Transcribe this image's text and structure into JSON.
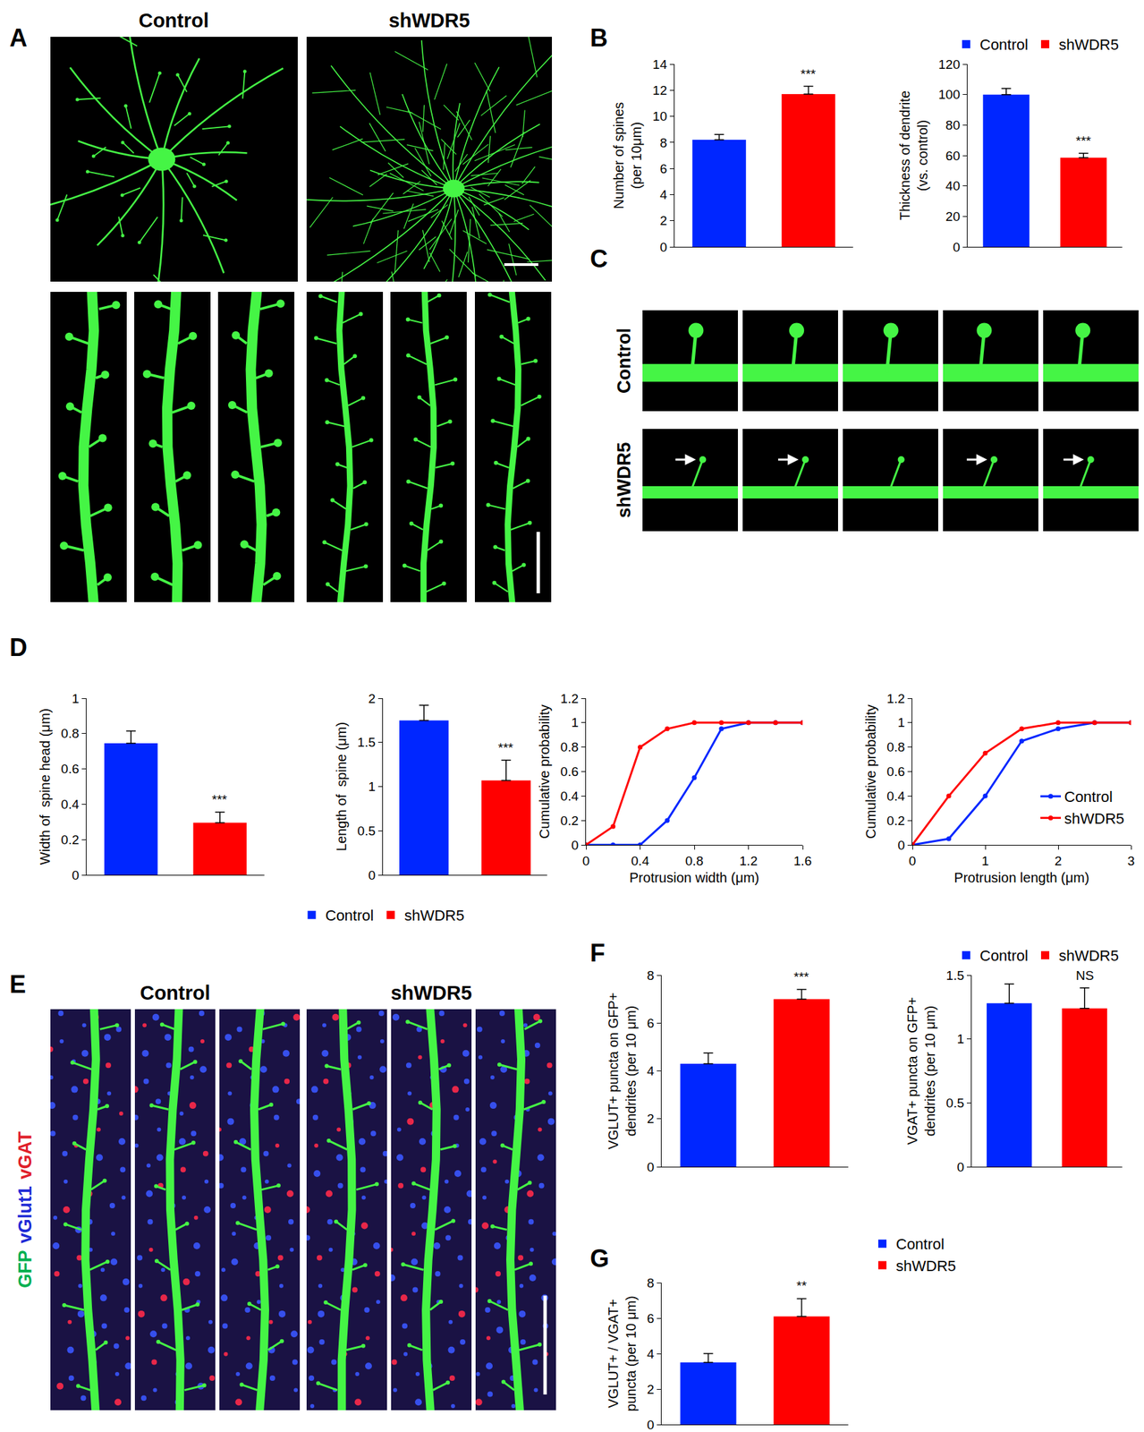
{
  "figure": {
    "letters": [
      "A",
      "B",
      "C",
      "D",
      "E",
      "F",
      "G"
    ],
    "image_panels": [
      {
        "letter": "A",
        "labels": [
          "Control",
          "shWDR5"
        ]
      },
      {
        "letter": "C",
        "labels": [
          "Control",
          "shWDR5"
        ]
      },
      {
        "letter": "E",
        "labels": [
          "Control",
          "shWDR5"
        ],
        "stains": [
          {
            "text": "GFP",
            "color": "#00b050"
          },
          {
            "text": "vGlut1",
            "color": "#1f2bd6"
          },
          {
            "text": "vGAT",
            "color": "#e0202a"
          }
        ]
      }
    ]
  },
  "chart_data": [
    {
      "type": "bar",
      "y_title": [
        "Number of spines",
        "(per 10μm)"
      ],
      "categories": [
        "Control",
        "shWDR5"
      ],
      "values": [
        8.2,
        11.7
      ],
      "errors": [
        0.4,
        0.6
      ],
      "colors": [
        "#0026ff",
        "#ff0000"
      ],
      "ylim": [
        0,
        14
      ],
      "yticks": [
        0,
        2,
        4,
        6,
        8,
        10,
        12,
        14
      ],
      "tick_labels": "y",
      "annotations": [
        {
          "category": "shWDR5",
          "text": "***"
        }
      ]
    },
    {
      "type": "bar",
      "y_title": [
        "Thickness of dendrite",
        "(vs. control)"
      ],
      "categories": [
        "Control",
        "shWDR5"
      ],
      "values": [
        100,
        58.5
      ],
      "errors": [
        4,
        3
      ],
      "colors": [
        "#0026ff",
        "#ff0000"
      ],
      "ylim": [
        0,
        120
      ],
      "yticks": [
        0,
        20,
        40,
        60,
        80,
        100,
        120
      ],
      "tick_labels": "y",
      "legend": "top right",
      "annotations": [
        {
          "category": "shWDR5",
          "text": "***"
        }
      ]
    },
    {
      "type": "bar",
      "y_title": [
        "Width of  spine head (μm)"
      ],
      "categories": [
        "Control",
        "shWDR5"
      ],
      "values": [
        0.745,
        0.295
      ],
      "errors": [
        0.07,
        0.06
      ],
      "colors": [
        "#0026ff",
        "#ff0000"
      ],
      "ylim": [
        0,
        1
      ],
      "yticks": [
        0,
        0.2,
        0.4,
        0.6,
        0.8,
        1
      ],
      "tick_labels": "y",
      "annotations": [
        {
          "category": "shWDR5",
          "text": "***"
        }
      ]
    },
    {
      "type": "bar",
      "y_title": [
        "Length of  spine (μm)"
      ],
      "categories": [
        "Control",
        "shWDR5"
      ],
      "values": [
        1.75,
        1.07
      ],
      "errors": [
        0.17,
        0.23
      ],
      "colors": [
        "#0026ff",
        "#ff0000"
      ],
      "ylim": [
        0,
        2
      ],
      "yticks": [
        0,
        0.5,
        1,
        1.5,
        2
      ],
      "tick_labels": "y",
      "legend": "bottom left",
      "annotations": [
        {
          "category": "shWDR5",
          "text": "***"
        }
      ]
    },
    {
      "type": "line",
      "x_title": "Protrusion width (μm)",
      "y_title": [
        "Cumulative probability"
      ],
      "x": [
        0,
        0.2,
        0.4,
        0.6,
        0.8,
        1.0,
        1.2,
        1.4,
        1.6
      ],
      "series": [
        {
          "name": "Control",
          "color": "#0026ff",
          "values": [
            0,
            0,
            0,
            0.2,
            0.55,
            0.95,
            1,
            1,
            1
          ]
        },
        {
          "name": "shWDR5",
          "color": "#ff0000",
          "values": [
            0,
            0.15,
            0.8,
            0.95,
            1,
            1,
            1,
            1,
            1
          ]
        }
      ],
      "marker": "circle",
      "xlim": [
        0,
        1.6
      ],
      "xticks": [
        0,
        0.4,
        0.8,
        1.2,
        1.6
      ],
      "ylim": [
        0,
        1.2
      ],
      "yticks": [
        0,
        0.2,
        0.4,
        0.6,
        0.8,
        1,
        1.2
      ]
    },
    {
      "type": "line",
      "x_title": "Protrusion length (μm)",
      "y_title": [
        "Cumulative probability"
      ],
      "x": [
        0,
        0.5,
        1,
        1.5,
        2,
        2.5,
        3
      ],
      "series": [
        {
          "name": "Control",
          "color": "#0026ff",
          "values": [
            0,
            0.05,
            0.4,
            0.85,
            0.95,
            1,
            1
          ]
        },
        {
          "name": "shWDR5",
          "color": "#ff0000",
          "values": [
            0,
            0.4,
            0.75,
            0.95,
            1,
            1,
            1
          ]
        }
      ],
      "marker": "circle",
      "xlim": [
        0,
        3
      ],
      "xticks": [
        0,
        1,
        2,
        3
      ],
      "ylim": [
        0,
        1.2
      ],
      "yticks": [
        0,
        0.2,
        0.4,
        0.6,
        0.8,
        1,
        1.2
      ],
      "legend": "lower right"
    },
    {
      "type": "bar",
      "y_title": [
        "VGLUT+ puncta on GFP+",
        "dendrites (per 10 μm)"
      ],
      "categories": [
        "Control",
        "shWDR5"
      ],
      "values": [
        4.3,
        7.0
      ],
      "errors": [
        0.45,
        0.4
      ],
      "colors": [
        "#0026ff",
        "#ff0000"
      ],
      "ylim": [
        0,
        8
      ],
      "yticks": [
        0,
        2,
        4,
        6,
        8
      ],
      "tick_labels": "y",
      "annotations": [
        {
          "category": "shWDR5",
          "text": "***"
        }
      ]
    },
    {
      "type": "bar",
      "y_title": [
        "VGAT+ puncta on GFP+",
        "dendrites (per 10 μm)"
      ],
      "categories": [
        "Control",
        "shWDR5"
      ],
      "values": [
        1.28,
        1.24
      ],
      "errors": [
        0.15,
        0.16
      ],
      "colors": [
        "#0026ff",
        "#ff0000"
      ],
      "ylim": [
        0,
        1.5
      ],
      "yticks": [
        0,
        0.5,
        1,
        1.5
      ],
      "tick_labels": "y",
      "legend": "top right",
      "annotations": [
        {
          "category": "shWDR5",
          "text": "NS"
        }
      ]
    },
    {
      "type": "bar",
      "y_title": [
        "VGLUT+ / VGAT+",
        "puncta (per 10 μm)"
      ],
      "categories": [
        "Control",
        "shWDR5"
      ],
      "values": [
        3.5,
        6.1
      ],
      "errors": [
        0.5,
        1.0
      ],
      "colors": [
        "#0026ff",
        "#ff0000"
      ],
      "ylim": [
        0,
        8
      ],
      "yticks": [
        0,
        2,
        4,
        6,
        8
      ],
      "tick_labels": "y",
      "legend": "right",
      "annotations": [
        {
          "category": "shWDR5",
          "text": "**"
        }
      ]
    }
  ]
}
